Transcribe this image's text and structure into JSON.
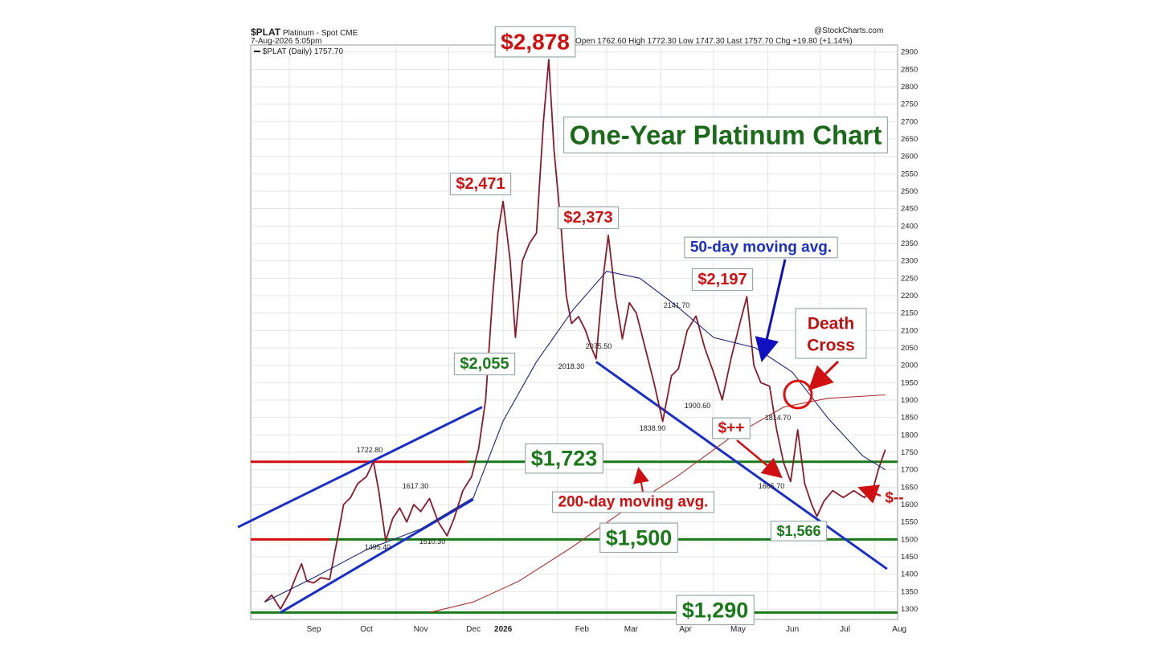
{
  "header": {
    "symbol": "$PLAT",
    "name": "Platinum - Spot",
    "exchange": "CME",
    "date": "7-Aug-2026 5:05pm",
    "legend_line": "$PLAT (Daily) 1757.70",
    "source": "@StockCharts.com",
    "quote": "Open 1762.60  High 1772.30  Low 1747.30  Last 1757.70  Chg +19.80 (+1.14%)"
  },
  "chart_data": {
    "type": "line",
    "title": "One-Year Platinum Chart",
    "xlabel": "",
    "ylabel": "",
    "ylim": [
      1270,
      2920
    ],
    "grid": true,
    "y_axis_side": "right",
    "y_ticks": [
      1300,
      1350,
      1400,
      1450,
      1500,
      1550,
      1600,
      1650,
      1700,
      1750,
      1800,
      1850,
      1900,
      1950,
      2000,
      2050,
      2100,
      2150,
      2200,
      2250,
      2300,
      2350,
      2400,
      2450,
      2500,
      2550,
      2600,
      2650,
      2700,
      2750,
      2800,
      2850,
      2900
    ],
    "x_ticks": [
      "Sep",
      "Oct",
      "Nov",
      "Dec",
      "2026",
      "Feb",
      "Mar",
      "Apr",
      "May",
      "Jun",
      "Jul",
      "Aug"
    ],
    "series": [
      {
        "name": "$PLAT (Daily)",
        "color": "#8b1a2a",
        "points": [
          [
            "Aug 18",
            1320
          ],
          [
            "Aug 22",
            1340
          ],
          [
            "Aug 27",
            1300
          ],
          [
            "Sep 1",
            1345
          ],
          [
            "Sep 5",
            1395
          ],
          [
            "Sep 8",
            1430
          ],
          [
            "Sep 11",
            1380
          ],
          [
            "Sep 15",
            1375
          ],
          [
            "Sep 19",
            1390
          ],
          [
            "Sep 24",
            1385
          ],
          [
            "Sep 28",
            1490
          ],
          [
            "Oct 2",
            1600
          ],
          [
            "Oct 6",
            1620
          ],
          [
            "Oct 10",
            1660
          ],
          [
            "Oct 15",
            1680
          ],
          [
            "Oct 19",
            1722.8
          ],
          [
            "Oct 22",
            1640
          ],
          [
            "Oct 26",
            1495.4
          ],
          [
            "Oct 30",
            1560
          ],
          [
            "Nov 3",
            1590
          ],
          [
            "Nov 7",
            1550
          ],
          [
            "Nov 11",
            1600
          ],
          [
            "Nov 15",
            1580
          ],
          [
            "Nov 20",
            1617.3
          ],
          [
            "Nov 25",
            1550
          ],
          [
            "Nov 30",
            1510.3
          ],
          [
            "Dec 4",
            1560
          ],
          [
            "Dec 9",
            1640
          ],
          [
            "Dec 14",
            1680
          ],
          [
            "Dec 18",
            1760
          ],
          [
            "Dec 22",
            1900
          ],
          [
            "Dec 26",
            2200
          ],
          [
            "Dec 29",
            2380
          ],
          [
            "Jan 1",
            2471
          ],
          [
            "Jan 5",
            2300
          ],
          [
            "Jan 8",
            2080
          ],
          [
            "Jan 12",
            2300
          ],
          [
            "Jan 16",
            2350
          ],
          [
            "Jan 20",
            2380
          ],
          [
            "Jan 24",
            2700
          ],
          [
            "Jan 27",
            2878
          ],
          [
            "Jan 30",
            2620
          ],
          [
            "Feb 3",
            2400
          ],
          [
            "Feb 6",
            2200
          ],
          [
            "Feb 9",
            2120
          ],
          [
            "Feb 13",
            2140
          ],
          [
            "Feb 17",
            2100
          ],
          [
            "Feb 20",
            2055
          ],
          [
            "Feb 23",
            2018.3
          ],
          [
            "Feb 27",
            2250
          ],
          [
            "Mar 2",
            2373
          ],
          [
            "Mar 6",
            2200
          ],
          [
            "Mar 10",
            2075.5
          ],
          [
            "Mar 14",
            2180
          ],
          [
            "Mar 18",
            2150
          ],
          [
            "Mar 23",
            2050
          ],
          [
            "Mar 28",
            1950
          ],
          [
            "Apr 2",
            1838.9
          ],
          [
            "Apr 7",
            1970
          ],
          [
            "Apr 11",
            1990
          ],
          [
            "Apr 16",
            2100
          ],
          [
            "Apr 21",
            2141.7
          ],
          [
            "Apr 26",
            2050
          ],
          [
            "May 1",
            1980
          ],
          [
            "May 6",
            1900.6
          ],
          [
            "May 11",
            2020
          ],
          [
            "May 16",
            2120
          ],
          [
            "May 20",
            2197
          ],
          [
            "May 24",
            2000
          ],
          [
            "May 28",
            1950
          ],
          [
            "Jun 2",
            1940
          ],
          [
            "Jun 6",
            1814.7
          ],
          [
            "Jun 10",
            1720
          ],
          [
            "Jun 14",
            1665.7
          ],
          [
            "Jun 18",
            1814.7
          ],
          [
            "Jun 22",
            1660
          ],
          [
            "Jun 26",
            1600
          ],
          [
            "Jun 29",
            1566
          ],
          [
            "Jul 3",
            1610
          ],
          [
            "Jul 8",
            1640
          ],
          [
            "Jul 14",
            1620
          ],
          [
            "Jul 20",
            1640
          ],
          [
            "Jul 26",
            1620
          ],
          [
            "Jul 31",
            1645
          ],
          [
            "Aug 3",
            1700
          ],
          [
            "Aug 7",
            1757.7
          ]
        ]
      },
      {
        "name": "50-day moving avg.",
        "color": "#1a237e",
        "points": [
          [
            "Aug 18",
            1320
          ],
          [
            "Sep 15",
            1390
          ],
          [
            "Oct 15",
            1470
          ],
          [
            "Nov 15",
            1530
          ],
          [
            "Dec 15",
            1620
          ],
          [
            "Jan 1",
            1840
          ],
          [
            "Jan 20",
            2010
          ],
          [
            "Feb 10",
            2160
          ],
          [
            "Mar 1",
            2270
          ],
          [
            "Mar 20",
            2250
          ],
          [
            "Apr 10",
            2170
          ],
          [
            "May 1",
            2080
          ],
          [
            "May 25",
            2050
          ],
          [
            "Jun 15",
            1980
          ],
          [
            "Jul 5",
            1850
          ],
          [
            "Jul 25",
            1740
          ],
          [
            "Aug 7",
            1700
          ]
        ]
      },
      {
        "name": "200-day moving avg.",
        "color": "#b03030",
        "points": [
          [
            "Nov 20",
            1290
          ],
          [
            "Dec 15",
            1320
          ],
          [
            "Jan 10",
            1380
          ],
          [
            "Feb 10",
            1480
          ],
          [
            "Mar 10",
            1580
          ],
          [
            "Apr 10",
            1680
          ],
          [
            "May 10",
            1790
          ],
          [
            "Jun 10",
            1880
          ],
          [
            "Jul 5",
            1905
          ],
          [
            "Aug 7",
            1915
          ]
        ]
      }
    ],
    "horizontal_levels": [
      {
        "value": 1723,
        "label": "$1,723",
        "color": "#1a7a1a"
      },
      {
        "value": 1500,
        "label": "$1,500",
        "color": "#1a7a1a"
      },
      {
        "value": 1290,
        "label": "$1,290",
        "color": "#1a7a1a"
      }
    ],
    "trendlines": [
      {
        "from": [
          "Aug 10",
          1535
        ],
        "to": [
          "Dec 20",
          1880
        ]
      },
      {
        "from": [
          "Aug 27",
          1290
        ],
        "to": [
          "Dec 15",
          1615
        ]
      },
      {
        "from": [
          "Feb 23",
          2010
        ],
        "to": [
          "Aug 8",
          1415
        ]
      }
    ],
    "point_labels": [
      "1722.80",
      "1495.40",
      "1617.30",
      "1510.30",
      "2018.30",
      "2075.50",
      "1838.90",
      "2141.70",
      "1900.60",
      "1814.70",
      "1665.70"
    ],
    "price_callouts": [
      "$2,878",
      "$2,471",
      "$2,373",
      "$2,197",
      "$2,055",
      "$1,566",
      "$++",
      "$--"
    ],
    "annotations": [
      "50-day moving avg.",
      "200-day moving avg.",
      "Death Cross"
    ]
  }
}
